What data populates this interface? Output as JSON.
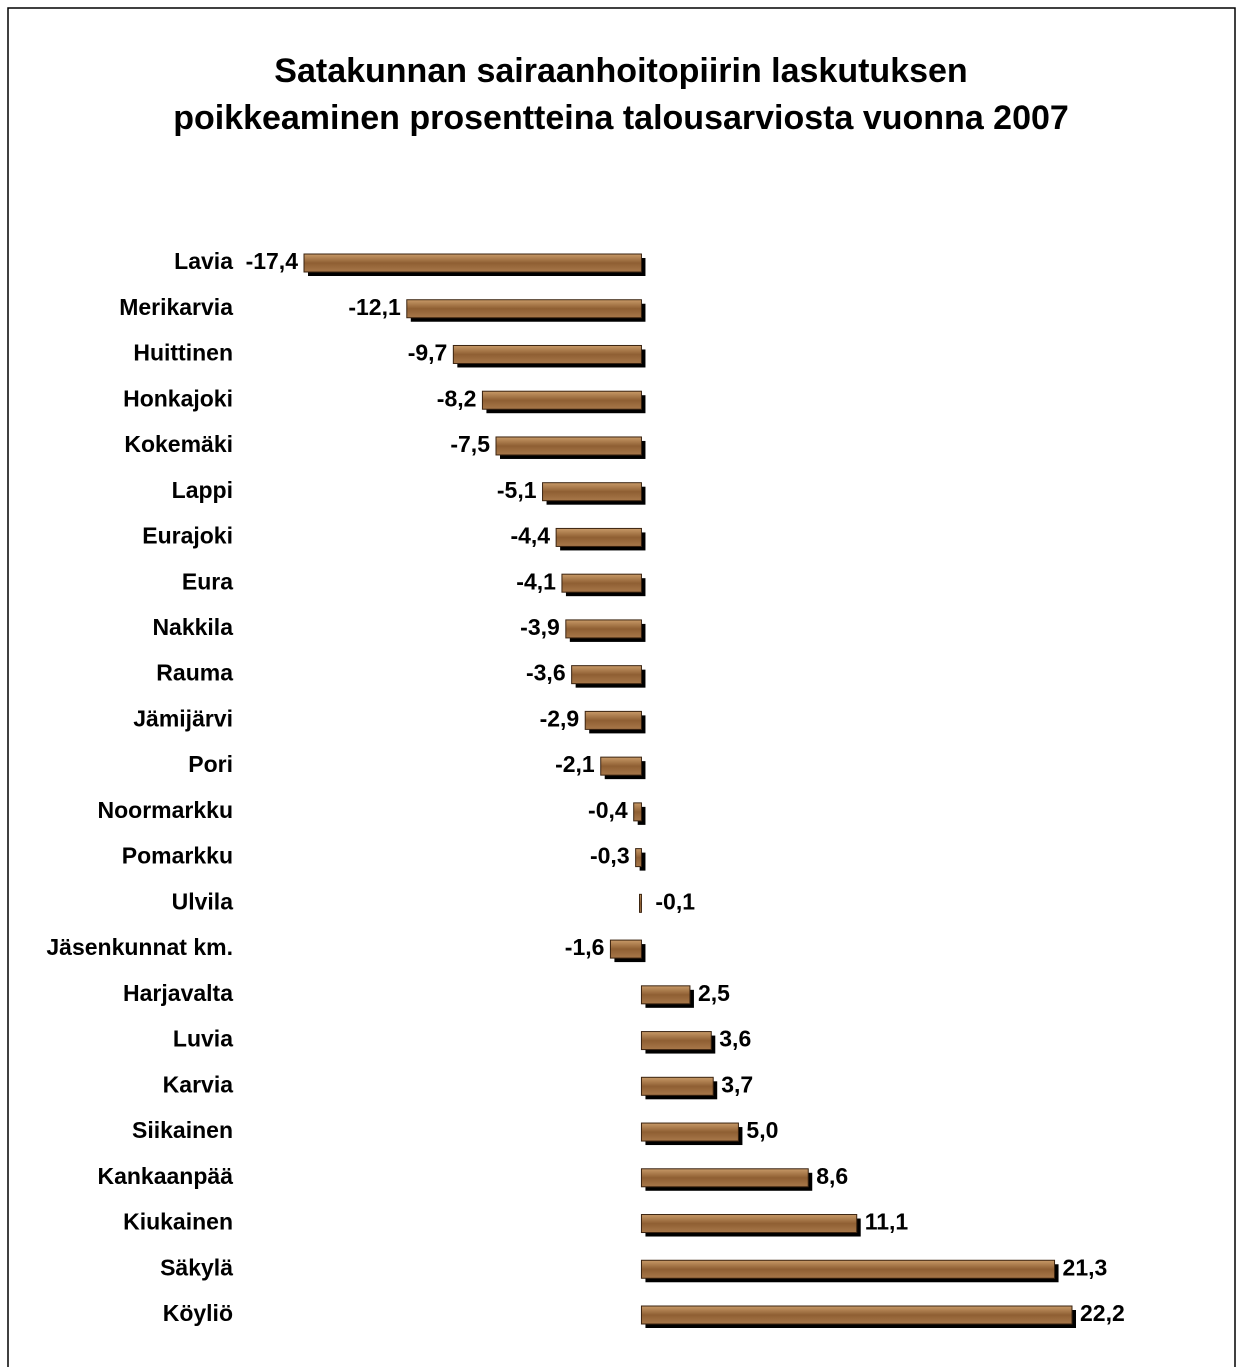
{
  "chart_data": {
    "type": "hbar",
    "title": "Satakunnan sairaanhoitopiirin laskutuksen poikkeaminen prosentteina talousarviosta vuonna 2007",
    "categories": [
      "Lavia",
      "Merikarvia",
      "Huittinen",
      "Honkajoki",
      "Kokemäki",
      "Lappi",
      "Eurajoki",
      "Eura",
      "Nakkila",
      "Rauma",
      "Jämijärvi",
      "Pori",
      "Noormarkku",
      "Pomarkku",
      "Ulvila",
      "Jäsenkunnat km.",
      "Harjavalta",
      "Luvia",
      "Karvia",
      "Siikainen",
      "Kankaanpää",
      "Kiukainen",
      "Säkylä",
      "Köyliö"
    ],
    "values": [
      -17.4,
      -12.1,
      -9.7,
      -8.2,
      -7.5,
      -5.1,
      -4.4,
      -4.1,
      -3.9,
      -3.6,
      -2.9,
      -2.1,
      -0.4,
      -0.3,
      -0.1,
      -1.6,
      2.5,
      3.6,
      3.7,
      5.0,
      8.6,
      11.1,
      21.3,
      22.2
    ],
    "value_labels": [
      "-17,4",
      "-12,1",
      "-9,7",
      "-8,2",
      "-7,5",
      "-5,1",
      "-4,4",
      "-4,1",
      "-3,9",
      "-3,6",
      "-2,9",
      "-2,1",
      "-0,4",
      "-0,3",
      "-0,1",
      "-1,6",
      "2,5",
      "3,6",
      "3,7",
      "5,0",
      "8,6",
      "11,1",
      "21,3",
      "22,2"
    ],
    "color": "#9a6a3c"
  }
}
